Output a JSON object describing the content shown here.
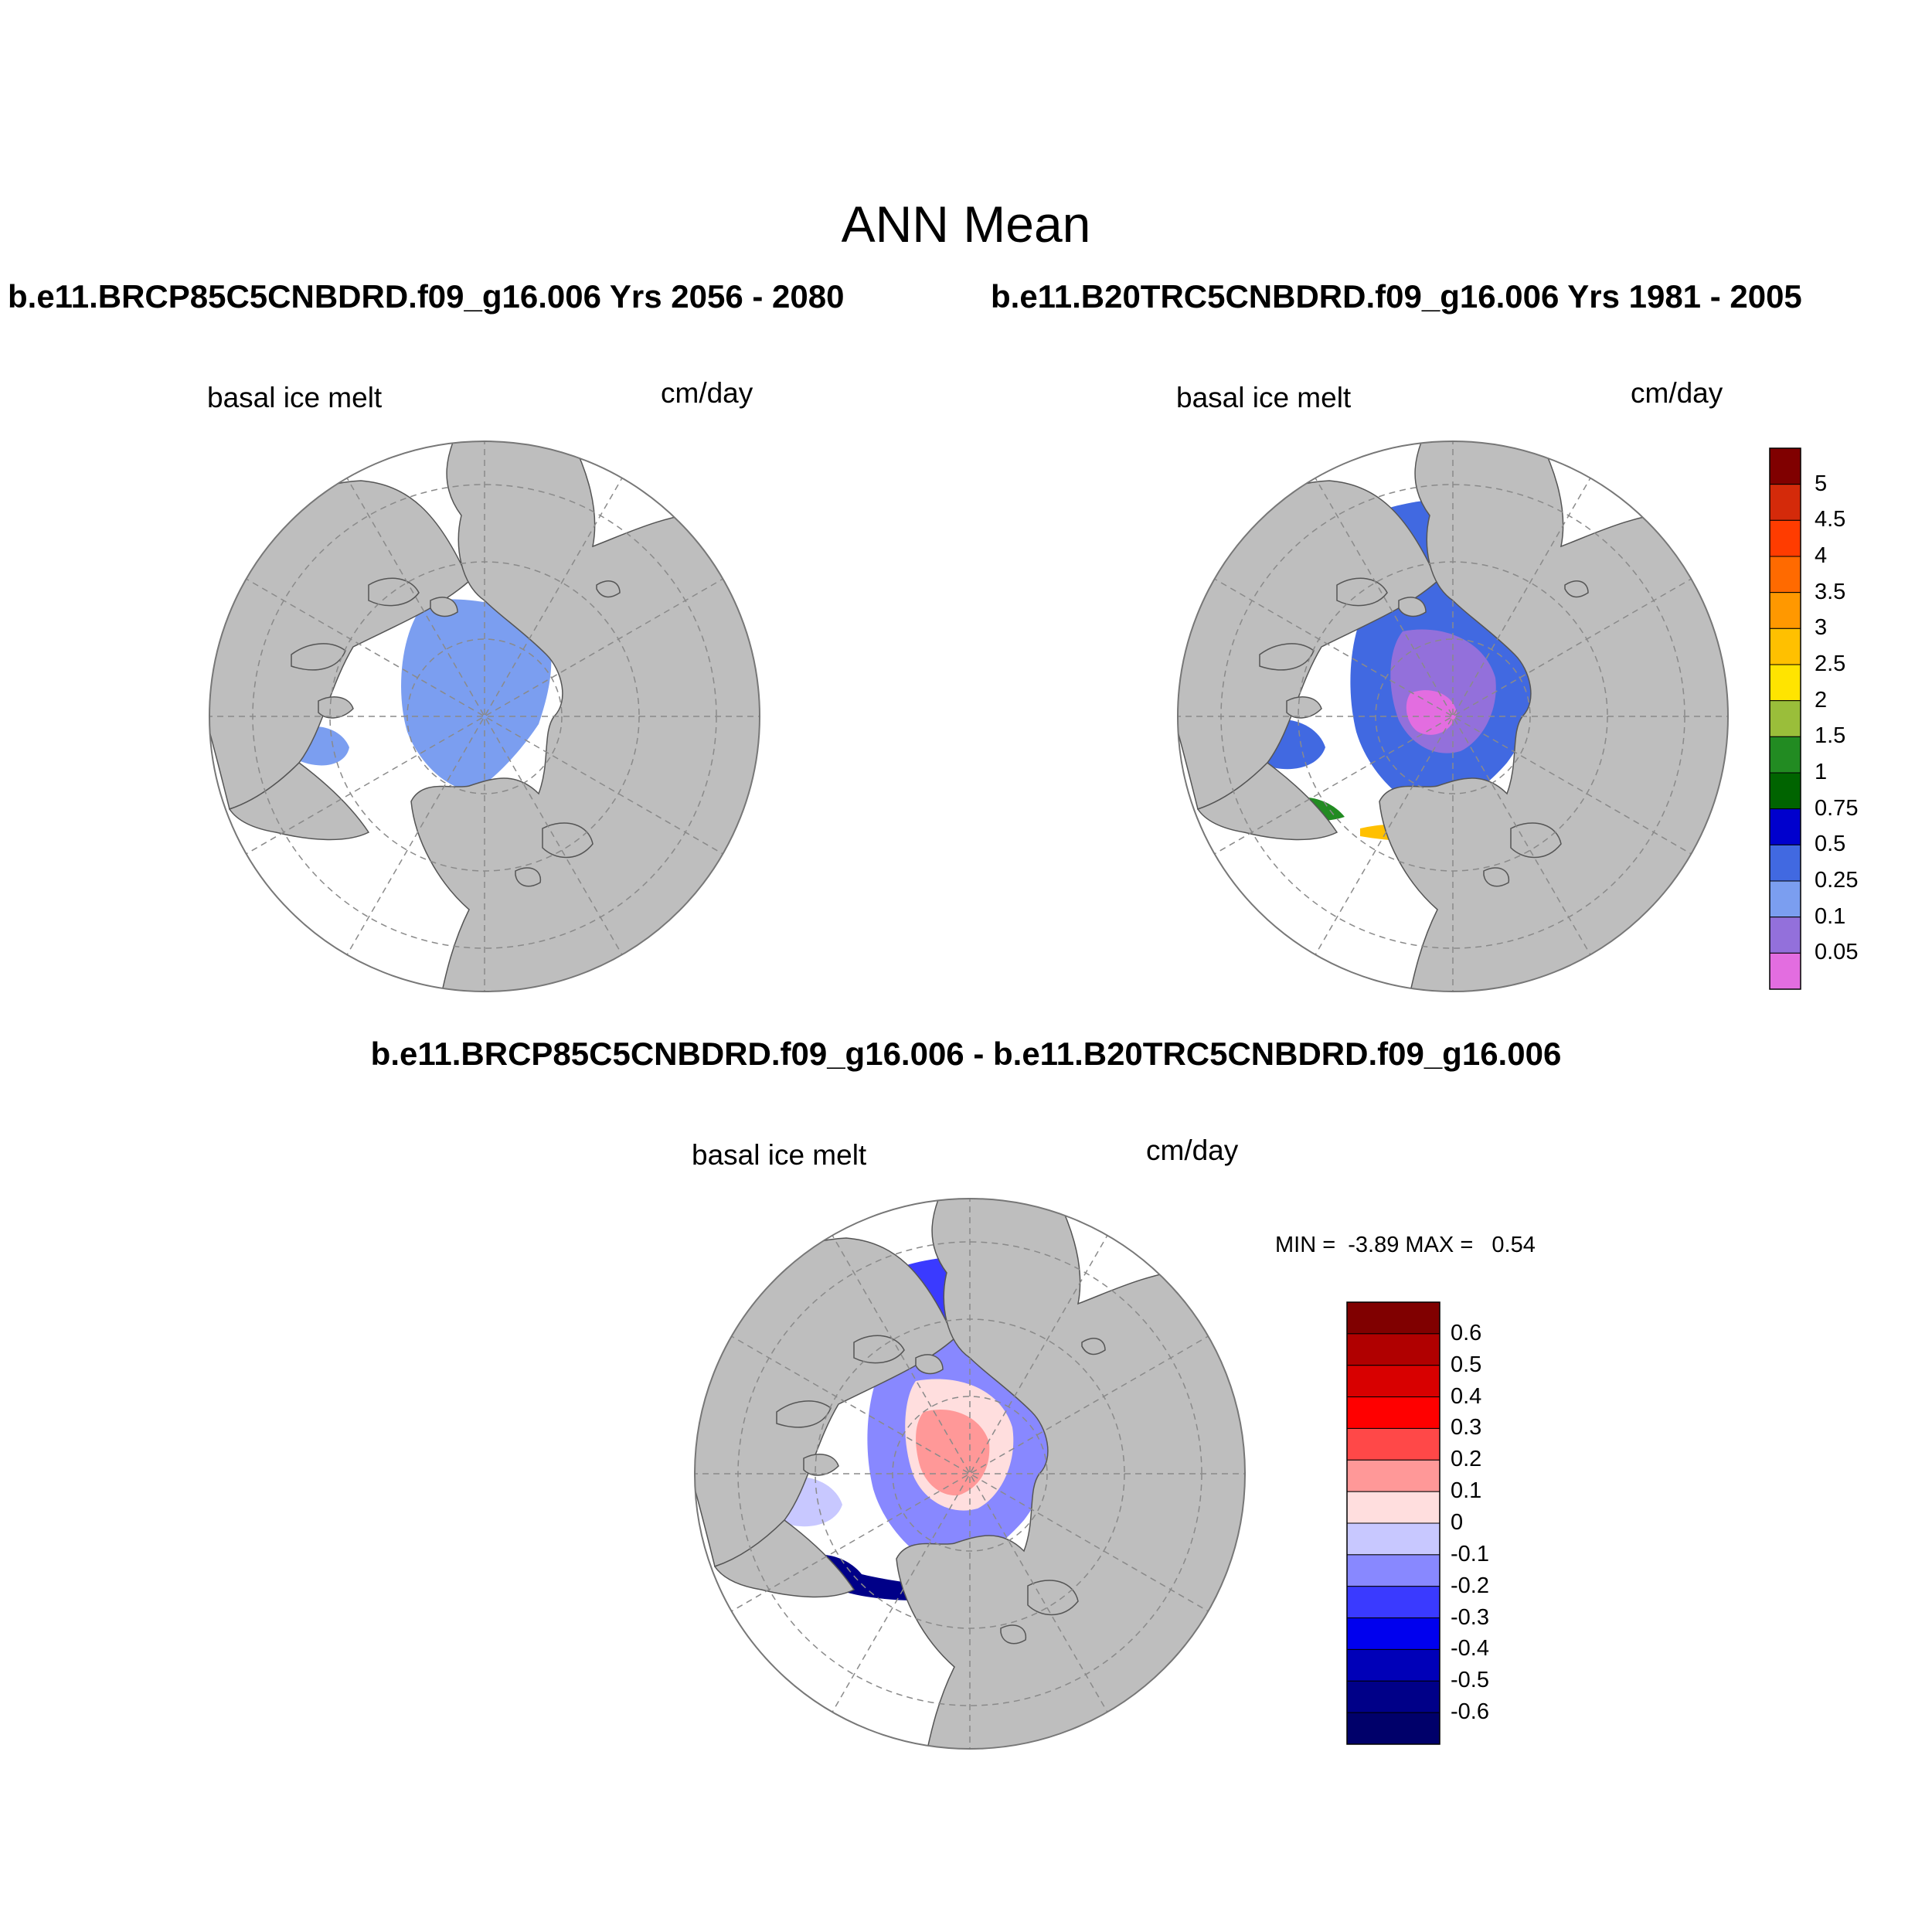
{
  "figure": {
    "title": "ANN Mean",
    "panels": [
      {
        "run_label": "b.e11.BRCP85C5CNBDRD.f09_g16.006  Yrs 2056 - 2080",
        "variable": "basal ice melt",
        "units": "cm/day"
      },
      {
        "run_label": "b.e11.B20TRC5CNBDRD.f09_g16.006  Yrs 1981 - 2005",
        "variable": "basal ice melt",
        "units": "cm/day"
      }
    ],
    "difference": {
      "run_label": "b.e11.BRCP85C5CNBDRD.f09_g16.006 - b.e11.B20TRC5CNBDRD.f09_g16.006",
      "variable": "basal ice melt",
      "units": "cm/day",
      "min_max": "MIN =  -3.89 MAX =   0.54"
    },
    "colorbar_main": {
      "labels": [
        "5",
        "4.5",
        "4",
        "3.5",
        "3",
        "2.5",
        "2",
        "1.5",
        "1",
        "0.75",
        "0.5",
        "0.25",
        "0.1",
        "0.05"
      ],
      "colors": [
        "#800000",
        "#d42a0a",
        "#ff3c00",
        "#ff6a00",
        "#ff9800",
        "#ffc000",
        "#ffe400",
        "#9abe3a",
        "#228b22",
        "#006400",
        "#0000cd",
        "#4169e1",
        "#7b9ef0",
        "#9370db",
        "#e36de0"
      ]
    },
    "colorbar_diff": {
      "labels": [
        "0.6",
        "0.5",
        "0.4",
        "0.3",
        "0.2",
        "0.1",
        "0",
        "-0.1",
        "-0.2",
        "-0.3",
        "-0.4",
        "-0.5",
        "-0.6"
      ],
      "colors": [
        "#800000",
        "#b00000",
        "#d80000",
        "#ff0000",
        "#ff4848",
        "#ff9898",
        "#ffdede",
        "#c8c8ff",
        "#8888ff",
        "#3a3aff",
        "#0000ee",
        "#0000b8",
        "#000088",
        "#00006a"
      ]
    },
    "colors": {
      "land": "#bebebe",
      "ocean": "#ffffff",
      "grid": "#808080"
    }
  }
}
